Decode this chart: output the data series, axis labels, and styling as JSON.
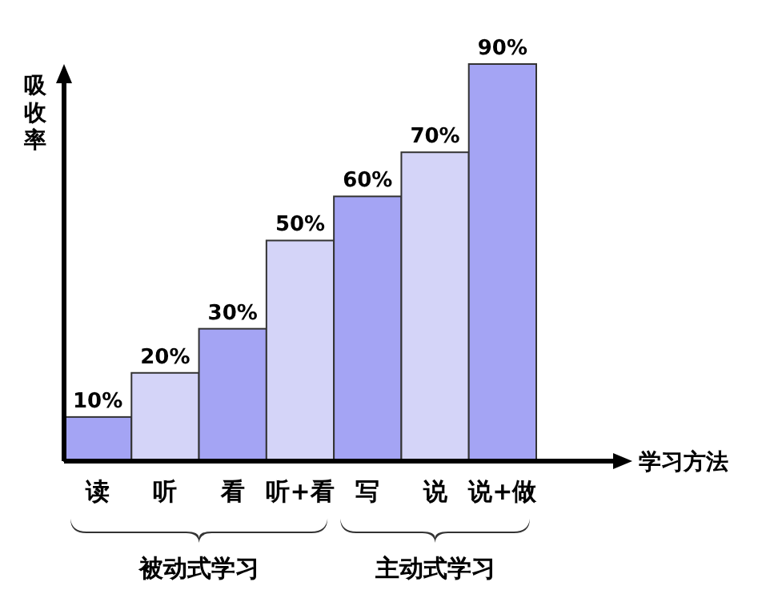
{
  "chart_data": {
    "type": "bar",
    "categories": [
      "读",
      "听",
      "看",
      "听+看",
      "写",
      "说",
      "说+做"
    ],
    "values": [
      10,
      20,
      30,
      50,
      60,
      70,
      90
    ],
    "value_labels": [
      "10%",
      "20%",
      "30%",
      "50%",
      "60%",
      "70%",
      "90%"
    ],
    "colors": [
      "#a4a4f4",
      "#d4d4f8",
      "#a4a4f4",
      "#d4d4f8",
      "#a4a4f4",
      "#d4d4f8",
      "#a4a4f4"
    ],
    "xlabel": "学习方法",
    "ylabel": "吸收率",
    "annotations": [
      "被动式学习",
      "主动式学习"
    ]
  }
}
